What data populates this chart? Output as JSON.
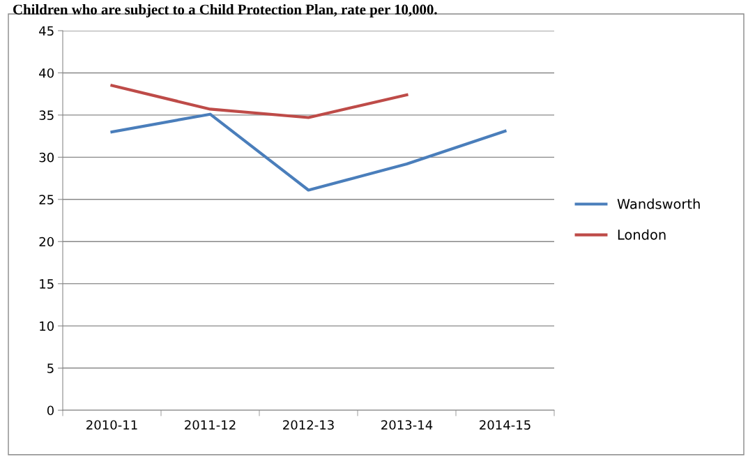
{
  "chart_data": {
    "type": "line",
    "title": "Children who are subject to a Child Protection Plan, rate per 10,000.",
    "categories": [
      "2010-11",
      "2011-12",
      "2012-13",
      "2013-14",
      "2014-15"
    ],
    "series": [
      {
        "name": "Wandsworth",
        "color": "#4a7ebb",
        "values": [
          33.0,
          35.1,
          26.1,
          29.2,
          33.1
        ]
      },
      {
        "name": "London",
        "color": "#be4b48",
        "values": [
          38.5,
          35.7,
          34.7,
          37.4,
          null
        ]
      }
    ],
    "ylim": [
      0,
      45
    ],
    "yticks": [
      0,
      5,
      10,
      15,
      20,
      25,
      30,
      35,
      40,
      45
    ],
    "grid": "y",
    "legend": "right",
    "marker": "none",
    "line_style": "solid"
  }
}
